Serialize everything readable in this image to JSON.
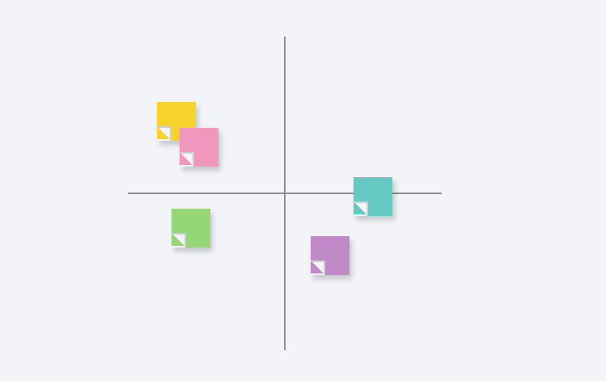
{
  "board": {
    "background": "#f3f4f8",
    "axis_color": "#8e8e8e"
  },
  "notes": [
    {
      "name": "yellow",
      "color": "#f7d42b",
      "quadrant": "top-left"
    },
    {
      "name": "pink",
      "color": "#ef97bd",
      "quadrant": "top-left"
    },
    {
      "name": "teal",
      "color": "#66c8c2",
      "quadrant": "right-on-axis"
    },
    {
      "name": "green",
      "color": "#95d676",
      "quadrant": "bottom-left"
    },
    {
      "name": "purple",
      "color": "#c08ac9",
      "quadrant": "bottom-right"
    }
  ]
}
